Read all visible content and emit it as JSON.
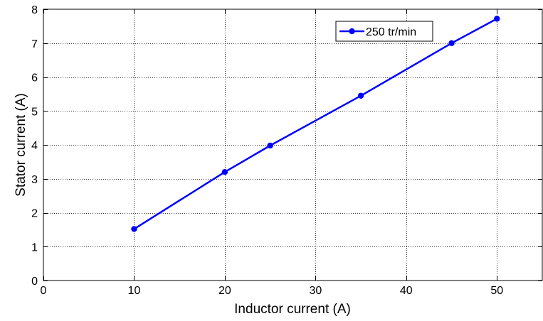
{
  "chart_data": {
    "type": "line",
    "title": "",
    "xlabel": "Inductor current (A)",
    "ylabel": "Stator current (A)",
    "xlim": [
      0,
      55
    ],
    "ylim": [
      0,
      8
    ],
    "xticks": [
      0,
      10,
      20,
      30,
      40,
      50
    ],
    "yticks": [
      0,
      1,
      2,
      3,
      4,
      5,
      6,
      7,
      8
    ],
    "grid": true,
    "grid_style": "dotted",
    "legend_position": "top-right",
    "series": [
      {
        "name": "250 tr/min",
        "color": "#0000ff",
        "marker": "circle",
        "x": [
          10,
          20,
          25,
          35,
          45,
          50
        ],
        "y": [
          1.52,
          3.2,
          3.98,
          5.45,
          7.0,
          7.72
        ]
      }
    ]
  }
}
